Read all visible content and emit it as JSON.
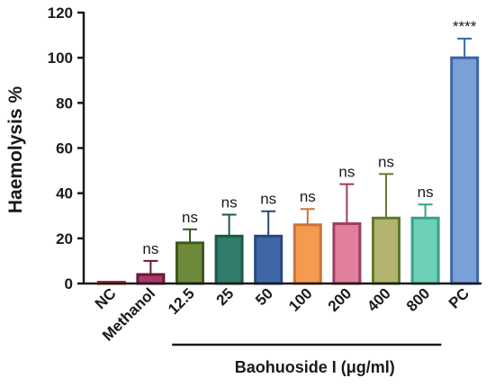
{
  "chart_data": {
    "type": "bar",
    "title": "",
    "ylabel": "Haemolysis %",
    "xlabel": "",
    "ylim": [
      0,
      120
    ],
    "yticks": [
      0,
      20,
      40,
      60,
      80,
      100,
      120
    ],
    "grid": false,
    "categories": [
      "NC",
      "Methanol",
      "12.5",
      "25",
      "50",
      "100",
      "200",
      "400",
      "800",
      "PC"
    ],
    "values": [
      0.5,
      4,
      18,
      21,
      21,
      26,
      26.5,
      29,
      29,
      100
    ],
    "errors": [
      0.3,
      6,
      6,
      9.5,
      11,
      7,
      17.5,
      19.5,
      6,
      8.5
    ],
    "significance": [
      "",
      "ns",
      "ns",
      "ns",
      "ns",
      "ns",
      "ns",
      "ns",
      "ns",
      "****"
    ],
    "fill_colors": [
      "#e04a4a",
      "#a8376b",
      "#6e8a3a",
      "#2f7d6a",
      "#3f67a8",
      "#f59a4f",
      "#e0809c",
      "#b3b56f",
      "#6fd0b8",
      "#7aa0d8"
    ],
    "edge_colors": [
      "#b02a2a",
      "#6b1a3a",
      "#3e5a1c",
      "#1c5848",
      "#27487e",
      "#c9743a",
      "#9e3c63",
      "#5f7a2c",
      "#3aa08a",
      "#3b64a8"
    ],
    "group": {
      "label": "Baohuoside I (μg/ml)",
      "from_category": "12.5",
      "to_category": "800"
    }
  }
}
